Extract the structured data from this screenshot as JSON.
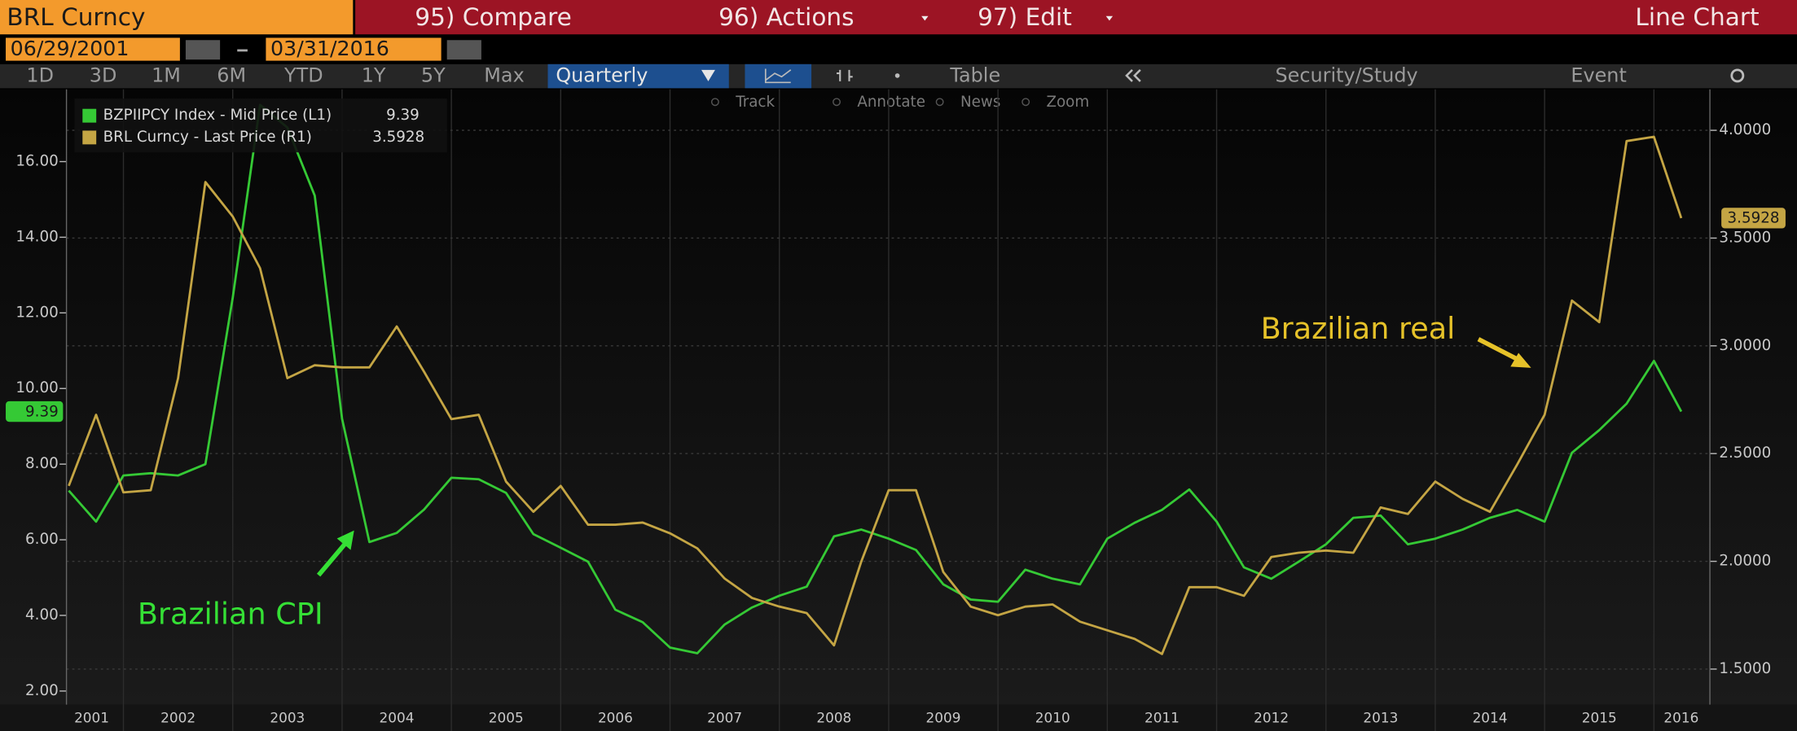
{
  "ui": {
    "ticker": "BRL Curncy",
    "menu": [
      "95) Compare",
      "96) Actions",
      "97) Edit"
    ],
    "view": "Line Chart",
    "start_date": "06/29/2001",
    "end_date": "03/31/2016",
    "periods": [
      "1D",
      "3D",
      "1M",
      "6M",
      "YTD",
      "1Y",
      "5Y",
      "Max"
    ],
    "frequency": "Quarterly",
    "buttons": [
      "Table",
      "Security/Study",
      "Event"
    ],
    "tools": [
      "Track",
      "Annotate",
      "News",
      "Zoom"
    ]
  },
  "chart_data": {
    "type": "line",
    "categories": [
      "2001",
      null,
      null,
      null,
      "2002",
      null,
      null,
      null,
      "2003",
      null,
      null,
      null,
      "2004",
      null,
      null,
      null,
      "2005",
      null,
      null,
      null,
      "2006",
      null,
      null,
      null,
      "2007",
      null,
      null,
      null,
      "2008",
      null,
      null,
      null,
      "2009",
      null,
      null,
      null,
      "2010",
      null,
      null,
      null,
      "2011",
      null,
      null,
      null,
      "2012",
      null,
      null,
      null,
      "2013",
      null,
      null,
      null,
      "2014",
      null,
      null,
      null,
      "2015",
      null,
      null,
      "2016"
    ],
    "series": [
      {
        "name": "BZPIIPCY Index - Mid Price (L1)",
        "color": "#35c935",
        "values": [
          7.3,
          6.48,
          7.7,
          7.76,
          7.7,
          8.0,
          12.4,
          17.5,
          16.9,
          15.1,
          9.2,
          5.94,
          6.18,
          6.8,
          7.64,
          7.6,
          7.24,
          6.15,
          5.79,
          5.42,
          4.15,
          3.82,
          3.15,
          3.0,
          3.76,
          4.21,
          4.52,
          4.76,
          6.09,
          6.27,
          6.03,
          5.73,
          4.82,
          4.42,
          4.36,
          5.21,
          4.97,
          4.82,
          6.03,
          6.45,
          6.79,
          7.33,
          6.48,
          5.27,
          4.97,
          5.42,
          5.88,
          6.58,
          6.64,
          5.88,
          6.03,
          6.27,
          6.58,
          6.79,
          6.48,
          8.3,
          8.9,
          9.6,
          10.73,
          9.39
        ]
      },
      {
        "name": "BRL Curncy - Last Price (R1)",
        "color": "#c4a544",
        "axis": "y2",
        "values": [
          2.35,
          2.68,
          2.32,
          2.33,
          2.85,
          3.76,
          3.6,
          3.36,
          2.85,
          2.91,
          2.9,
          2.9,
          3.09,
          2.88,
          2.66,
          2.68,
          2.37,
          2.23,
          2.35,
          2.17,
          2.17,
          2.18,
          2.13,
          2.06,
          1.92,
          1.83,
          1.79,
          1.76,
          1.61,
          2.0,
          2.33,
          2.33,
          1.95,
          1.79,
          1.75,
          1.79,
          1.8,
          1.72,
          1.68,
          1.64,
          1.57,
          1.88,
          1.88,
          1.84,
          2.02,
          2.04,
          2.05,
          2.04,
          2.25,
          2.22,
          2.37,
          2.29,
          2.23,
          2.45,
          2.68,
          3.21,
          3.11,
          3.95,
          3.97,
          3.5928
        ]
      }
    ],
    "ylim": [
      1.64,
      17.91
    ],
    "yticks": [
      {
        "value": 2,
        "label": "2.00"
      },
      {
        "value": 4,
        "label": "4.00"
      },
      {
        "value": 6,
        "label": "6.00"
      },
      {
        "value": 8,
        "label": "8.00"
      },
      {
        "value": 10,
        "label": "10.00"
      },
      {
        "value": 12,
        "label": "12.00"
      },
      {
        "value": 14,
        "label": "14.00"
      },
      {
        "value": 16,
        "label": "16.00"
      }
    ],
    "y2lim": [
      1.335,
      4.19
    ],
    "y2ticks": [
      {
        "value": 1.5,
        "label": "1.5000"
      },
      {
        "value": 2,
        "label": "2.0000"
      },
      {
        "value": 2.5,
        "label": "2.5000"
      },
      {
        "value": 3,
        "label": "3.0000"
      },
      {
        "value": 3.5,
        "label": "3.5000"
      },
      {
        "value": 4,
        "label": "4.0000"
      }
    ],
    "grid": true,
    "annotations": [
      "Brazilian CPI",
      "Brazilian real"
    ]
  }
}
